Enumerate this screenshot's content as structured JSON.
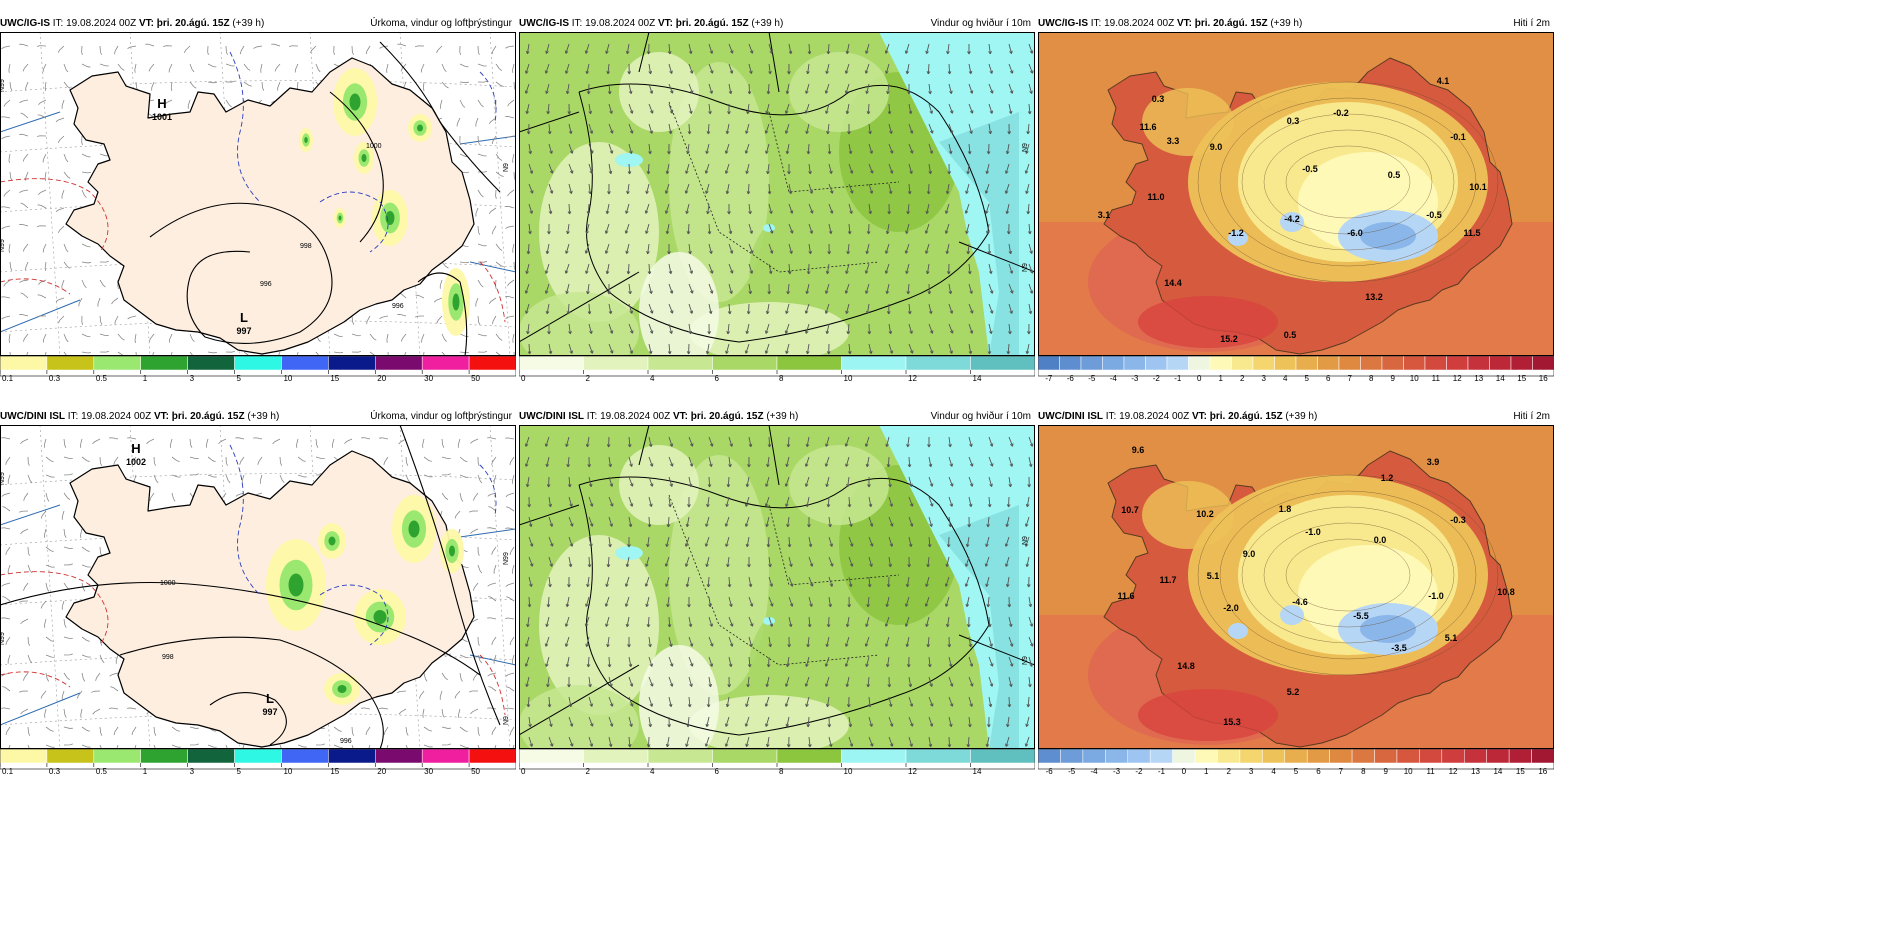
{
  "panels": [
    {
      "id": "p1",
      "model": "UWC/IG-IS",
      "it_label": "IT:",
      "it": "19.08.2024 00Z",
      "vt_label": "VT:",
      "vt": "þri. 20.ágú. 15Z",
      "lead": "(+39 h)",
      "title": "Úrkoma, vindur og loftþrýstingur",
      "kind": "precip",
      "legend": [
        "0.1",
        "0.3",
        "0.5",
        "1",
        "3",
        "5",
        "10",
        "15",
        "20",
        "30",
        "50"
      ],
      "legend_colors": [
        "#fdf8a6",
        "#c7c31a",
        "#9be870",
        "#2fa32f",
        "#11643c",
        "#2ef7e4",
        "#3f66f5",
        "#0a1a8a",
        "#7a0a6e",
        "#f01fa0",
        "#f51010"
      ],
      "highs": [
        {
          "t": "H",
          "v": "1001"
        }
      ],
      "lows": [
        {
          "t": "L",
          "v": "997"
        }
      ],
      "isobars": [
        "1000",
        "996",
        "996",
        "998"
      ],
      "side": [
        "N99",
        "N9",
        "N99"
      ],
      "values": []
    },
    {
      "id": "p2",
      "model": "UWC/IG-IS",
      "it_label": "IT:",
      "it": "19.08.2024 00Z",
      "vt_label": "VT:",
      "vt": "þri. 20.ágú. 15Z",
      "lead": "(+39 h)",
      "title": "Vindur og hviður í 10m",
      "kind": "wind",
      "legend": [
        "0",
        "2",
        "4",
        "6",
        "8",
        "10",
        "12",
        "14"
      ],
      "legend_colors": [
        "#f6fbe6",
        "#e3f3bd",
        "#c7e792",
        "#a9d867",
        "#8cc63f",
        "#9cf5f2",
        "#7edad8",
        "#5fc0bf"
      ],
      "highs": [],
      "lows": [],
      "isobars": [],
      "side": [
        "N9",
        "N9"
      ],
      "values": []
    },
    {
      "id": "p3",
      "model": "UWC/IG-IS",
      "it_label": "IT:",
      "it": "19.08.2024 00Z",
      "vt_label": "VT:",
      "vt": "þri. 20.ágú. 15Z",
      "lead": "(+39 h)",
      "title": "Hiti í 2m",
      "kind": "temp",
      "legend": [
        "-7",
        "-6",
        "-5",
        "-4",
        "-3",
        "-2",
        "-1",
        "0",
        "1",
        "2",
        "3",
        "4",
        "5",
        "6",
        "7",
        "8",
        "9",
        "10",
        "11",
        "12",
        "13",
        "14",
        "15",
        "16"
      ],
      "highs": [],
      "lows": [],
      "isobars": [],
      "side": [],
      "values": [
        "0.3",
        "4.1",
        "11.6",
        "3.3",
        "0.3",
        "-0.2",
        "9.0",
        "-0.1",
        "-0.5",
        "0.5",
        "10.1",
        "11.0",
        "-0.5",
        "3.1",
        "-4.2",
        "-1.2",
        "-6.0",
        "11.5",
        "14.4",
        "13.2",
        "15.2",
        "0.5"
      ]
    },
    {
      "id": "p4",
      "model": "UWC/DINI ISL",
      "it_label": "IT:",
      "it": "19.08.2024 00Z",
      "vt_label": "VT:",
      "vt": "þri. 20.ágú. 15Z",
      "lead": "(+39 h)",
      "title": "Úrkoma, vindur og loftþrýstingur",
      "kind": "precip",
      "legend": [
        "0.1",
        "0.3",
        "0.5",
        "1",
        "3",
        "5",
        "10",
        "15",
        "20",
        "30",
        "50"
      ],
      "legend_colors": [
        "#fdf8a6",
        "#c7c31a",
        "#9be870",
        "#2fa32f",
        "#11643c",
        "#2ef7e4",
        "#3f66f5",
        "#0a1a8a",
        "#7a0a6e",
        "#f01fa0",
        "#f51010"
      ],
      "highs": [
        {
          "t": "H",
          "v": "1002"
        }
      ],
      "lows": [
        {
          "t": "L",
          "v": "997"
        }
      ],
      "isobars": [
        "1000",
        "998",
        "996"
      ],
      "side": [
        "N99",
        "N99",
        "N99",
        "N9"
      ],
      "values": []
    },
    {
      "id": "p5",
      "model": "UWC/DINI ISL",
      "it_label": "IT:",
      "it": "19.08.2024 00Z",
      "vt_label": "VT:",
      "vt": "þri. 20.ágú. 15Z",
      "lead": "(+39 h)",
      "title": "Vindur og hviður í 10m",
      "kind": "wind",
      "legend": [
        "0",
        "2",
        "4",
        "6",
        "8",
        "10",
        "12",
        "14"
      ],
      "legend_colors": [
        "#f6fbe6",
        "#e3f3bd",
        "#c7e792",
        "#a9d867",
        "#8cc63f",
        "#9cf5f2",
        "#7edad8",
        "#5fc0bf"
      ],
      "highs": [],
      "lows": [],
      "isobars": [],
      "side": [
        "N9",
        "N9"
      ],
      "values": []
    },
    {
      "id": "p6",
      "model": "UWC/DINI ISL",
      "it_label": "IT:",
      "it": "19.08.2024 00Z",
      "vt_label": "VT:",
      "vt": "þri. 20.ágú. 15Z",
      "lead": "(+39 h)",
      "title": "Hiti í 2m",
      "kind": "temp",
      "legend": [
        "-6",
        "-5",
        "-4",
        "-3",
        "-2",
        "-1",
        "0",
        "1",
        "2",
        "3",
        "4",
        "5",
        "6",
        "7",
        "8",
        "9",
        "10",
        "11",
        "12",
        "13",
        "14",
        "15",
        "16"
      ],
      "highs": [],
      "lows": [],
      "isobars": [],
      "side": [],
      "values": [
        "9.6",
        "3.9",
        "10.7",
        "10.2",
        "1.8",
        "1.2",
        "-1.0",
        "-0.3",
        "9.0",
        "0.0",
        "5.1",
        "11.7",
        "11.6",
        "-2.0",
        "-4.6",
        "-1.0",
        "10.8",
        "-5.5",
        "-3.5",
        "5.1",
        "14.8",
        "5.2",
        "15.3"
      ]
    }
  ],
  "colors": {
    "land_precip": "#fdeee0",
    "wind_base": "#a9d867",
    "wind_sea": "#9ff6f3",
    "temp_sea": "#e08f44",
    "temp_cold": "#b6d6f5",
    "temp_warm": "#d8433f"
  }
}
